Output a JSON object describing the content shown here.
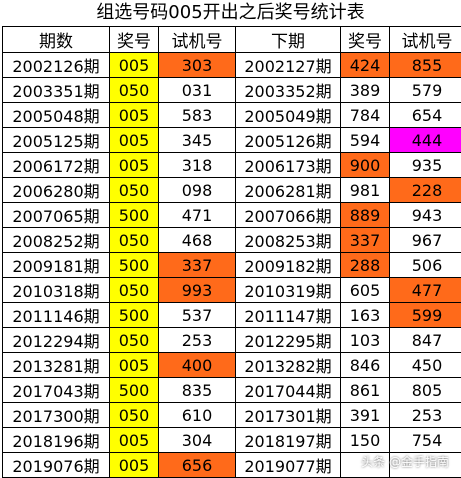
{
  "title": "组选号码005开出之后奖号统计表",
  "headers": [
    "期数",
    "奖号",
    "试机号",
    "下期",
    "奖号",
    "试机号"
  ],
  "colors": {
    "yellow": "#ffff00",
    "orange": "#ff6a1a",
    "magenta": "#ff00ff",
    "white": "#ffffff"
  },
  "rows": [
    {
      "cells": [
        "2002126期",
        "005",
        "303",
        "2002127期",
        "424",
        "855"
      ],
      "bg": [
        "",
        "yellow",
        "orange",
        "",
        "orange",
        "orange"
      ]
    },
    {
      "cells": [
        "2003351期",
        "050",
        "031",
        "2003352期",
        "389",
        "579"
      ],
      "bg": [
        "",
        "yellow",
        "",
        "",
        "",
        ""
      ]
    },
    {
      "cells": [
        "2005048期",
        "005",
        "583",
        "2005049期",
        "784",
        "654"
      ],
      "bg": [
        "",
        "yellow",
        "",
        "",
        "",
        ""
      ]
    },
    {
      "cells": [
        "2005125期",
        "005",
        "345",
        "2005126期",
        "594",
        "444"
      ],
      "bg": [
        "",
        "yellow",
        "",
        "",
        "",
        "magenta"
      ]
    },
    {
      "cells": [
        "2006172期",
        "005",
        "318",
        "2006173期",
        "900",
        "935"
      ],
      "bg": [
        "",
        "yellow",
        "",
        "",
        "orange",
        ""
      ]
    },
    {
      "cells": [
        "2006280期",
        "050",
        "098",
        "2006281期",
        "981",
        "228"
      ],
      "bg": [
        "",
        "yellow",
        "",
        "",
        "",
        "orange"
      ]
    },
    {
      "cells": [
        "2007065期",
        "500",
        "471",
        "2007066期",
        "889",
        "943"
      ],
      "bg": [
        "",
        "yellow",
        "",
        "",
        "orange",
        ""
      ]
    },
    {
      "cells": [
        "2008252期",
        "050",
        "468",
        "2008253期",
        "337",
        "967"
      ],
      "bg": [
        "",
        "yellow",
        "",
        "",
        "orange",
        ""
      ]
    },
    {
      "cells": [
        "2009181期",
        "500",
        "337",
        "2009182期",
        "288",
        "506"
      ],
      "bg": [
        "",
        "yellow",
        "orange",
        "",
        "orange",
        ""
      ]
    },
    {
      "cells": [
        "2010318期",
        "050",
        "993",
        "2010319期",
        "605",
        "477"
      ],
      "bg": [
        "",
        "yellow",
        "orange",
        "",
        "",
        "orange"
      ]
    },
    {
      "cells": [
        "2011146期",
        "500",
        "537",
        "2011147期",
        "163",
        "599"
      ],
      "bg": [
        "",
        "yellow",
        "",
        "",
        "",
        "orange"
      ]
    },
    {
      "cells": [
        "2012294期",
        "050",
        "253",
        "2012295期",
        "103",
        "847"
      ],
      "bg": [
        "",
        "yellow",
        "",
        "",
        "",
        ""
      ]
    },
    {
      "cells": [
        "2013281期",
        "005",
        "400",
        "2013282期",
        "846",
        "450"
      ],
      "bg": [
        "",
        "yellow",
        "orange",
        "",
        "",
        ""
      ]
    },
    {
      "cells": [
        "2017043期",
        "500",
        "835",
        "2017044期",
        "861",
        "805"
      ],
      "bg": [
        "",
        "yellow",
        "",
        "",
        "",
        ""
      ]
    },
    {
      "cells": [
        "2017300期",
        "050",
        "610",
        "2017301期",
        "391",
        "253"
      ],
      "bg": [
        "",
        "yellow",
        "",
        "",
        "",
        ""
      ]
    },
    {
      "cells": [
        "2018196期",
        "005",
        "304",
        "2018197期",
        "150",
        "754"
      ],
      "bg": [
        "",
        "yellow",
        "",
        "",
        "",
        ""
      ]
    },
    {
      "cells": [
        "2019076期",
        "005",
        "656",
        "2019077期",
        "",
        ""
      ],
      "bg": [
        "",
        "yellow",
        "orange",
        "",
        "",
        ""
      ]
    }
  ],
  "watermark": "头条 @金手指南"
}
